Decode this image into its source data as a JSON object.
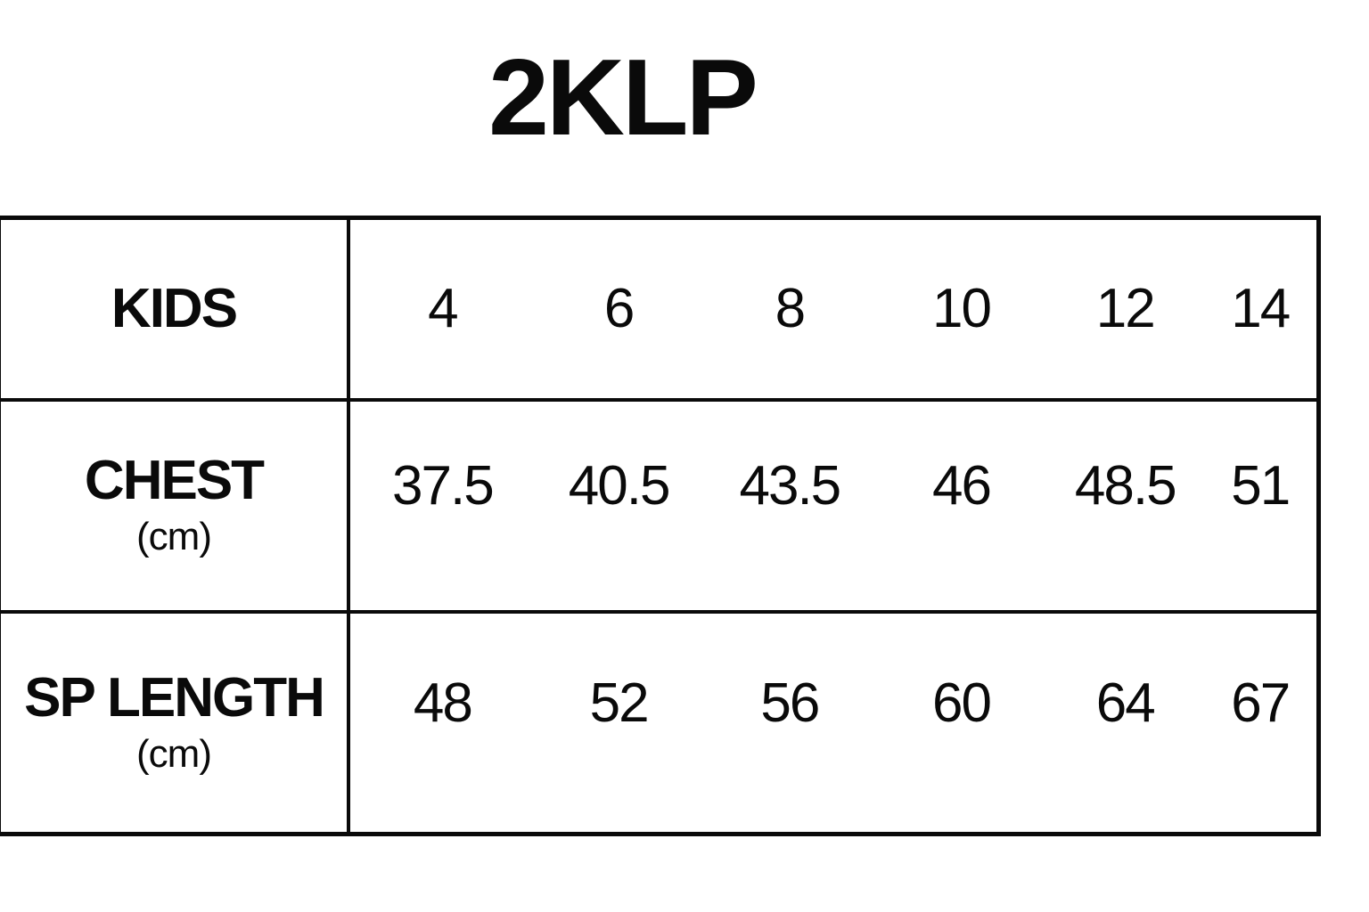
{
  "page": {
    "background": "#ffffff",
    "text_color": "#0a0a0a",
    "border_color": "#0a0a0a"
  },
  "title": "2KLP",
  "table": {
    "rows": [
      {
        "label": "KIDS",
        "sublabel": "",
        "values": [
          "4",
          "6",
          "8",
          "10",
          "12",
          "14"
        ]
      },
      {
        "label": "CHEST",
        "sublabel": "(cm)",
        "values": [
          "37.5",
          "40.5",
          "43.5",
          "46",
          "48.5",
          "51"
        ]
      },
      {
        "label": "SP LENGTH",
        "sublabel": "(cm)",
        "values": [
          "48",
          "52",
          "56",
          "60",
          "64",
          "67"
        ]
      }
    ]
  },
  "chart_data": {
    "type": "table",
    "title": "2KLP",
    "xlabel": "KIDS",
    "categories": [
      "4",
      "6",
      "8",
      "10",
      "12",
      "14"
    ],
    "series": [
      {
        "name": "KIDS",
        "values": [
          4,
          6,
          8,
          10,
          12,
          14
        ]
      },
      {
        "name": "CHEST (cm)",
        "values": [
          37.5,
          40.5,
          43.5,
          46,
          48.5,
          51
        ]
      },
      {
        "name": "SP LENGTH (cm)",
        "values": [
          48,
          52,
          56,
          60,
          64,
          67
        ]
      }
    ],
    "layout": {
      "grid": "row-dividers-and-label-column",
      "legend": "none"
    }
  }
}
